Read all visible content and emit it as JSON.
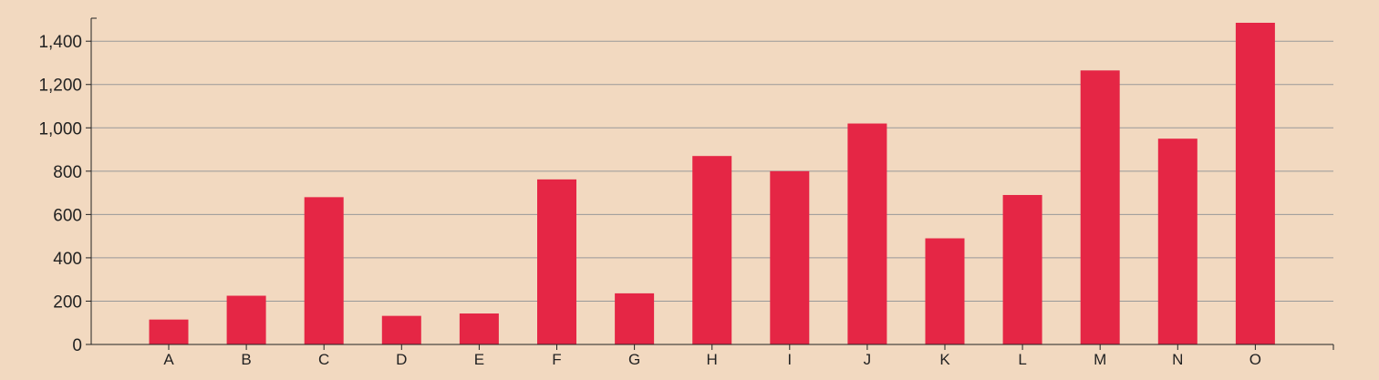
{
  "chart_data": {
    "type": "bar",
    "categories": [
      "A",
      "B",
      "C",
      "D",
      "E",
      "F",
      "G",
      "H",
      "I",
      "J",
      "K",
      "L",
      "M",
      "N",
      "O"
    ],
    "values": [
      115,
      225,
      680,
      132,
      143,
      762,
      236,
      870,
      800,
      1020,
      490,
      690,
      1265,
      950,
      1485
    ],
    "ylim": [
      0,
      1500
    ],
    "yticks": [
      0,
      200,
      400,
      600,
      800,
      1000,
      1200,
      1400
    ],
    "ytick_labels": [
      "0",
      "200",
      "400",
      "600",
      "800",
      "1,000",
      "1,200",
      "1,400"
    ],
    "grid": true,
    "colors": {
      "bar": "#e52645",
      "grid": "#999999",
      "axis": "#222222",
      "background": "#f2d9c0"
    }
  }
}
